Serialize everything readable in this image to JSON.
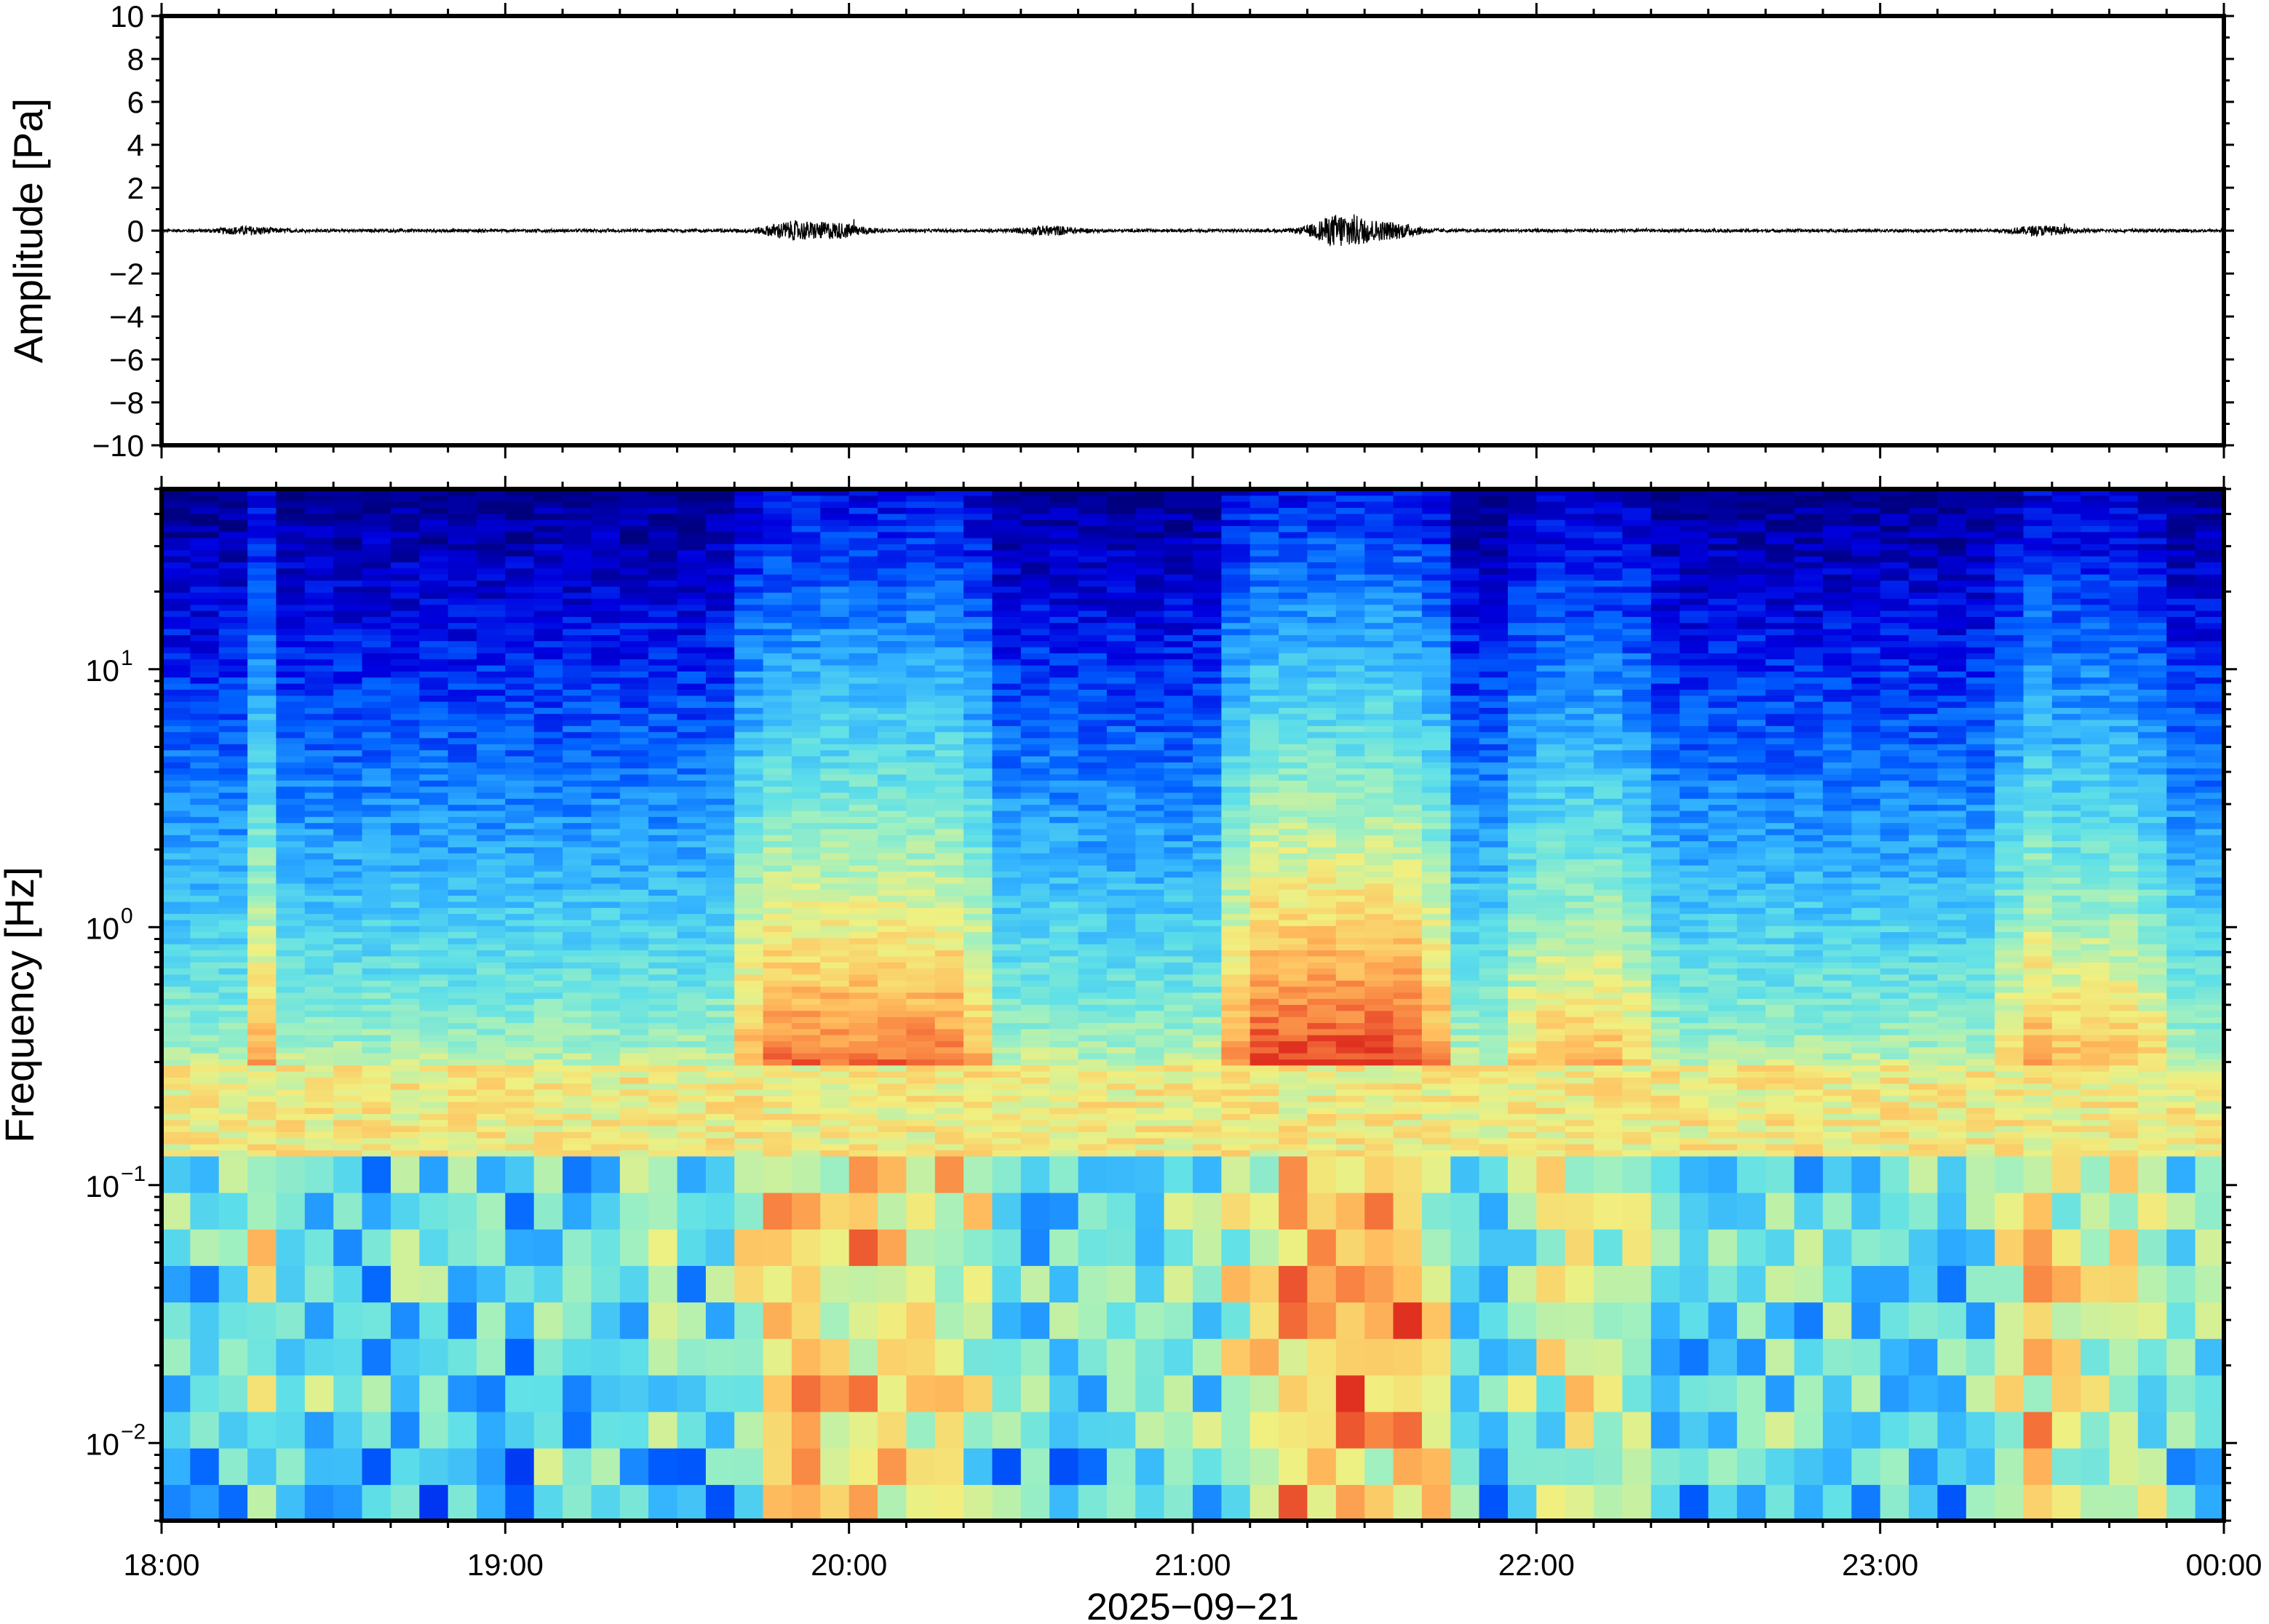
{
  "chart_data": [
    {
      "type": "line",
      "panel": "waveform",
      "ylabel": "Amplitude [Pa]",
      "ylim": [
        -10,
        10
      ],
      "yticks": [
        10,
        8,
        6,
        4,
        2,
        0,
        -2,
        -4,
        -6,
        -8,
        -10
      ],
      "ytick_labels": [
        "10",
        "8",
        "6",
        "4",
        "2",
        "0",
        "−2",
        "−4",
        "−6",
        "−8",
        "−10"
      ],
      "xlim_hours": [
        18,
        24
      ],
      "x_time_range": [
        "2025-09-21 18:00",
        "2025-09-22 00:00"
      ],
      "baseline": 0,
      "peak_amplitude": 0.8,
      "bursts": [
        {
          "time": "18:15",
          "amplitude": 0.25
        },
        {
          "time": "19:50",
          "amplitude": 0.6
        },
        {
          "time": "19:58",
          "amplitude": 0.5
        },
        {
          "time": "20:35",
          "amplitude": 0.3
        },
        {
          "time": "21:25",
          "amplitude": 0.5
        },
        {
          "time": "21:27",
          "amplitude": 0.8
        },
        {
          "time": "21:35",
          "amplitude": 0.5
        },
        {
          "time": "23:28",
          "amplitude": 0.3
        }
      ]
    },
    {
      "type": "heatmap",
      "panel": "spectrogram",
      "ylabel": "Frequency [Hz]",
      "yscale": "log",
      "ylim_hz": [
        0.005,
        50
      ],
      "ytick_labels": [
        {
          "value": 10,
          "base": "10",
          "exp": "1"
        },
        {
          "value": 1,
          "base": "10",
          "exp": "0"
        },
        {
          "value": 0.1,
          "base": "10",
          "exp": "−1"
        },
        {
          "value": 0.01,
          "base": "10",
          "exp": "−2"
        }
      ],
      "xlim_hours": [
        18,
        24
      ],
      "colormap": [
        "#00007f",
        "#0000e0",
        "#0060ff",
        "#30b0ff",
        "#5fe0e8",
        "#a0f0c0",
        "#f0f080",
        "#ffc060",
        "#f88040",
        "#e03020"
      ],
      "microseism_band_hz": [
        0.13,
        0.3
      ],
      "energetic_bursts": [
        {
          "start": "19:45",
          "end": "20:20",
          "low_freq_intensity": "high"
        },
        {
          "start": "21:10",
          "end": "21:40",
          "low_freq_intensity": "very high"
        },
        {
          "start": "22:00",
          "end": "22:15",
          "low_freq_intensity": "moderate"
        },
        {
          "start": "23:25",
          "end": "23:45",
          "low_freq_intensity": "moderate"
        }
      ],
      "bright_columns": [
        "18:18",
        "19:52",
        "20:35",
        "21:25",
        "21:35",
        "22:10",
        "23:28"
      ]
    }
  ],
  "x_axis": {
    "tick_labels": [
      "18:00",
      "19:00",
      "20:00",
      "21:00",
      "22:00",
      "23:00",
      "00:00"
    ],
    "date_label": "2025−09−21"
  },
  "colors": {
    "frame": "#000000",
    "waveform": "#000000",
    "background": "#ffffff"
  }
}
